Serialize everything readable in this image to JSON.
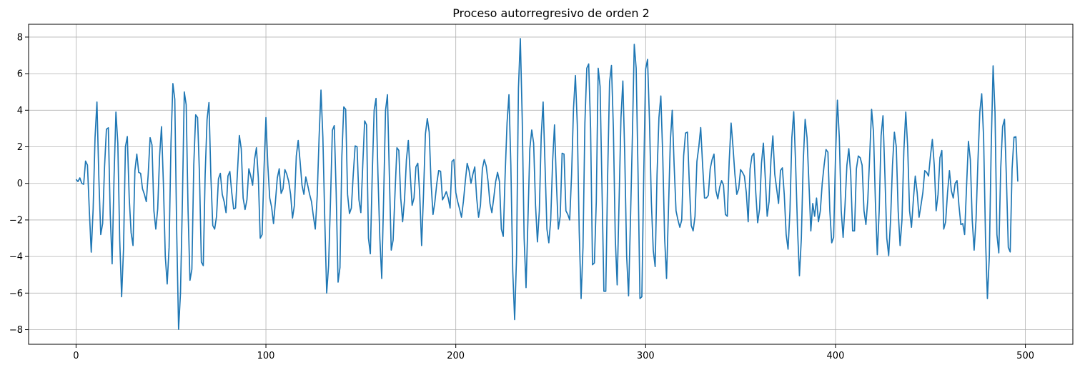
{
  "chart_data": {
    "type": "line",
    "title": "Proceso autorregresivo de orden 2",
    "xlabel": "",
    "ylabel": "",
    "xlim": [
      -25,
      525
    ],
    "ylim": [
      -8.8,
      8.7
    ],
    "xticks": [
      0,
      100,
      200,
      300,
      400,
      500
    ],
    "yticks": [
      -8,
      -6,
      -4,
      -2,
      0,
      2,
      4,
      6,
      8
    ],
    "grid": true,
    "line_color": "#1f77b4",
    "series": [
      {
        "x_start": 0,
        "x_step": 1,
        "values": [
          0.22,
          0.1,
          0.3,
          0.0,
          -0.05,
          1.22,
          1.0,
          -1.5,
          -3.76,
          -1.4,
          2.5,
          4.45,
          0.3,
          -2.8,
          -2.2,
          0.9,
          2.96,
          3.04,
          -1.7,
          -4.4,
          0.3,
          3.9,
          2.2,
          -3.1,
          -6.2,
          -3.6,
          2.0,
          2.56,
          -0.8,
          -2.7,
          -3.4,
          0.7,
          1.6,
          0.6,
          0.55,
          -0.3,
          -0.6,
          -1.0,
          0.5,
          2.5,
          2.1,
          -1.5,
          -2.5,
          -1.4,
          1.5,
          3.1,
          0.0,
          -4.0,
          -5.5,
          -3.5,
          2.2,
          5.46,
          4.6,
          -2.6,
          -7.98,
          -6.0,
          -1.0,
          5.0,
          4.3,
          -1.5,
          -5.3,
          -4.7,
          1.0,
          3.75,
          3.6,
          0.5,
          -4.3,
          -4.5,
          0.5,
          3.5,
          4.42,
          0.4,
          -2.3,
          -2.5,
          -1.8,
          0.25,
          0.55,
          -0.6,
          -1.0,
          -1.6,
          0.4,
          0.65,
          -0.5,
          -1.4,
          -1.35,
          0.6,
          2.62,
          1.9,
          -0.8,
          -1.43,
          -0.9,
          0.8,
          0.4,
          -0.1,
          1.3,
          1.95,
          0.3,
          -3.0,
          -2.8,
          0.8,
          3.6,
          1.0,
          -0.8,
          -1.3,
          -2.2,
          -1.0,
          0.3,
          0.8,
          -0.55,
          -0.3,
          0.75,
          0.5,
          0.1,
          -0.6,
          -1.9,
          -1.2,
          1.5,
          2.35,
          1.2,
          -0.1,
          -0.6,
          0.35,
          -0.1,
          -0.6,
          -1.0,
          -1.8,
          -2.5,
          -0.7,
          2.5,
          5.1,
          2.5,
          -2.0,
          -6.0,
          -4.5,
          -1.0,
          2.9,
          3.16,
          -0.5,
          -5.4,
          -4.6,
          1.5,
          4.18,
          4.05,
          -0.6,
          -1.65,
          -1.35,
          0.5,
          2.05,
          2.0,
          -0.9,
          -1.6,
          1.0,
          3.42,
          3.2,
          -3.0,
          -3.85,
          0.5,
          4.0,
          4.65,
          0.5,
          -3.0,
          -5.2,
          -0.8,
          4.0,
          4.85,
          0.5,
          -3.65,
          -3.1,
          -0.5,
          1.95,
          1.8,
          -0.8,
          -2.1,
          -0.9,
          1.3,
          2.35,
          0.5,
          -1.2,
          -0.8,
          0.9,
          1.1,
          -0.6,
          -3.4,
          -0.6,
          2.7,
          3.55,
          2.8,
          0.0,
          -1.7,
          -1.0,
          0.0,
          0.7,
          0.66,
          -0.9,
          -0.7,
          -0.45,
          -0.8,
          -1.35,
          1.2,
          1.3,
          -0.5,
          -1.0,
          -1.4,
          -1.85,
          -1.0,
          0.1,
          1.1,
          0.7,
          0.0,
          0.5,
          0.9,
          -0.8,
          -1.85,
          -1.2,
          0.8,
          1.3,
          0.95,
          0.1,
          -1.1,
          -1.6,
          -0.8,
          0.1,
          0.6,
          0.1,
          -2.5,
          -2.9,
          0.5,
          3.3,
          4.85,
          1.0,
          -4.8,
          -7.45,
          -4.0,
          5.2,
          7.92,
          3.5,
          -3.0,
          -5.7,
          -2.0,
          1.9,
          2.92,
          2.2,
          -1.2,
          -3.2,
          -1.5,
          2.6,
          4.45,
          1.0,
          -2.5,
          -3.25,
          -2.0,
          1.2,
          3.2,
          0.0,
          -2.5,
          -1.8,
          1.65,
          1.6,
          -1.5,
          -1.7,
          -2.0,
          0.5,
          4.1,
          5.9,
          3.2,
          -2.6,
          -6.3,
          -3.5,
          3.3,
          6.3,
          6.53,
          3.0,
          -4.45,
          -4.35,
          -1.0,
          6.3,
          5.3,
          -0.2,
          -5.9,
          -5.9,
          0.5,
          5.55,
          6.45,
          3.0,
          -3.0,
          -5.55,
          -1.0,
          3.6,
          5.6,
          1.5,
          -4.0,
          -6.15,
          -2.0,
          2.5,
          7.6,
          6.3,
          0.5,
          -6.3,
          -6.2,
          0.5,
          6.25,
          6.78,
          3.5,
          -1.0,
          -3.65,
          -4.55,
          0.5,
          3.6,
          4.78,
          1.5,
          -3.0,
          -5.2,
          -1.5,
          2.3,
          4.0,
          1.0,
          -1.5,
          -2.0,
          -2.4,
          -2.0,
          1.5,
          2.75,
          2.8,
          0.0,
          -2.3,
          -2.6,
          -1.8,
          1.2,
          2.0,
          3.05,
          1.0,
          -0.8,
          -0.8,
          -0.65,
          0.8,
          1.3,
          1.6,
          -0.4,
          -0.85,
          -0.2,
          0.15,
          -0.1,
          -1.7,
          -1.8,
          1.2,
          3.3,
          2.0,
          0.5,
          -0.6,
          -0.3,
          0.75,
          0.6,
          0.4,
          -0.5,
          -2.1,
          0.8,
          1.5,
          1.65,
          -0.5,
          -2.15,
          -1.4,
          1.1,
          2.2,
          0.3,
          -1.8,
          -1.0,
          1.3,
          2.6,
          0.5,
          -0.3,
          -1.1,
          0.7,
          0.85,
          -0.6,
          -2.8,
          -3.6,
          -1.5,
          2.5,
          3.92,
          1.0,
          -2.5,
          -5.05,
          -3.0,
          1.2,
          3.5,
          2.5,
          0.0,
          -2.6,
          -1.1,
          -1.8,
          -0.8,
          -2.1,
          -1.5,
          0.0,
          1.0,
          1.85,
          1.7,
          -1.5,
          -3.25,
          -2.95,
          1.5,
          4.55,
          2.5,
          -1.5,
          -2.95,
          -1.2,
          1.0,
          1.9,
          0.5,
          -2.6,
          -2.6,
          0.8,
          1.5,
          1.4,
          1.0,
          -1.5,
          -2.25,
          -0.9,
          1.5,
          4.05,
          2.8,
          -1.0,
          -3.9,
          -1.5,
          2.6,
          3.7,
          0.5,
          -3.0,
          -3.95,
          -2.0,
          1.0,
          2.8,
          2.0,
          -1.5,
          -3.4,
          -2.0,
          1.8,
          3.9,
          2.0,
          -1.5,
          -2.4,
          -0.9,
          0.4,
          -0.5,
          -1.85,
          -1.2,
          -0.5,
          0.7,
          0.6,
          0.4,
          1.5,
          2.4,
          1.0,
          -1.5,
          -0.6,
          1.4,
          1.8,
          -2.5,
          -2.1,
          -0.5,
          0.7,
          -0.4,
          -0.8,
          0.0,
          0.15,
          -1.2,
          -2.25,
          -2.2,
          -2.8,
          -0.2,
          2.3,
          1.3,
          -2.0,
          -3.65,
          -2.0,
          1.2,
          3.9,
          4.9,
          2.5,
          -3.0,
          -6.3,
          -4.0,
          2.0,
          6.43,
          3.9,
          -2.8,
          -3.8,
          0.8,
          3.1,
          3.5,
          0.3,
          -3.5,
          -3.75,
          0.8,
          2.52,
          2.55,
          0.1
        ]
      }
    ]
  }
}
